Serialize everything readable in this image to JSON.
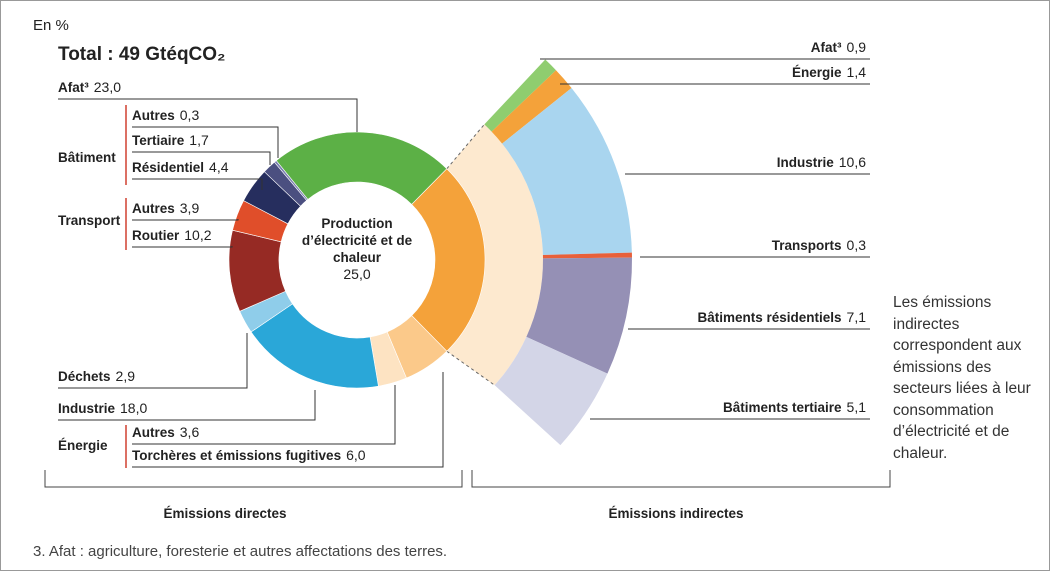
{
  "chart_data": {
    "type": "donut",
    "unit": "En %",
    "title": "Total : 49 GtéqCO₂",
    "series": [
      {
        "name": "Émissions directes",
        "categories": [
          "Afat³",
          "Production d’électricité et de chaleur",
          "Torchères et émissions fugitives",
          "Autres",
          "Industrie",
          "Déchets",
          "Routier",
          "Autres",
          "Résidentiel",
          "Tertiaire",
          "Autres"
        ],
        "values": [
          23.0,
          25.0,
          6.0,
          3.6,
          18.0,
          2.9,
          10.2,
          3.9,
          4.4,
          1.7,
          0.3
        ],
        "value_labels": [
          "23,0",
          "25,0",
          "6,0",
          "3,6",
          "18,0",
          "2,9",
          "10,2",
          "3,9",
          "4,4",
          "1,7",
          "0,3"
        ],
        "colors": [
          "#5cb046",
          "#f4a23a",
          "#fbc98a",
          "#fde3c2",
          "#2aa7d8",
          "#8fcdea",
          "#962a24",
          "#e04e2a",
          "#262e5e",
          "#4b4f80",
          "#7a7fb0"
        ]
      },
      {
        "name": "Émissions indirectes",
        "categories": [
          "Afat³",
          "Énergie",
          "Industrie",
          "Transports",
          "Bâtiments résidentiels",
          "Bâtiments tertiaire"
        ],
        "values": [
          0.9,
          1.4,
          10.6,
          0.3,
          7.1,
          5.1
        ],
        "value_labels": [
          "0,9",
          "1,4",
          "10,6",
          "0,3",
          "7,1",
          "5,1"
        ],
        "colors": [
          "#8fcd6f",
          "#f4a23a",
          "#a9d5ef",
          "#e8603a",
          "#9590b5",
          "#d3d5e7"
        ]
      }
    ],
    "groups": [
      "Bâtiment",
      "Transport",
      "Énergie"
    ],
    "note": "Les émissions indirectes correspondent aux émissions des secteurs liées à leur consommation d’électricité et de chaleur.",
    "footnote": "3. Afat : agriculture, foresterie et autres affectations des terres."
  }
}
